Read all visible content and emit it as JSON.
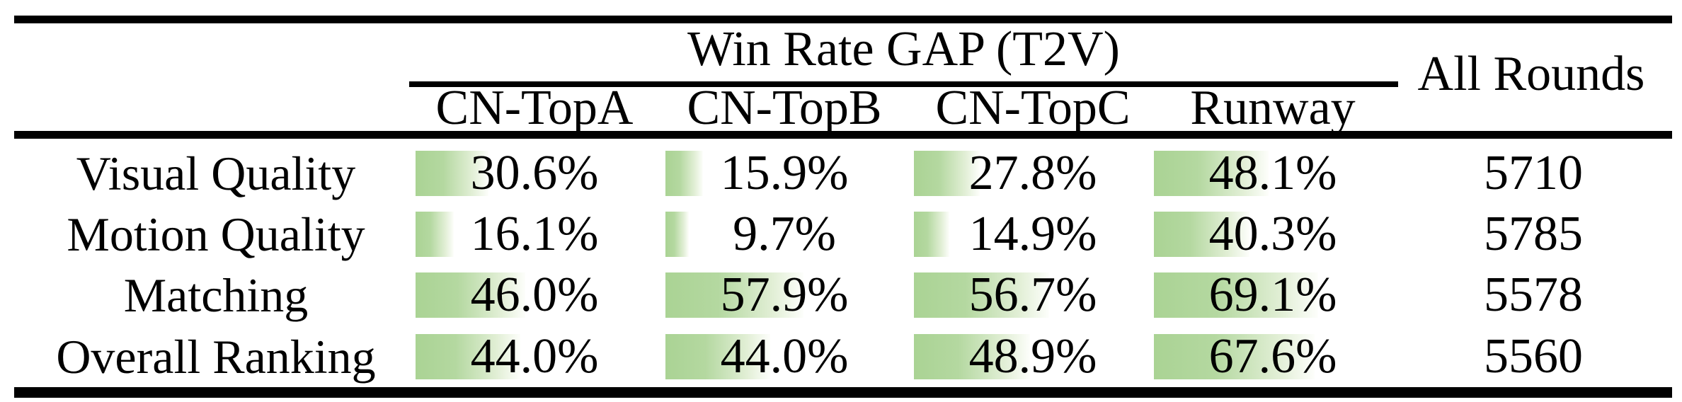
{
  "table": {
    "group_header": "Win Rate GAP (T2V)",
    "all_rounds_header": "All Rounds",
    "columns": [
      "CN-TopA",
      "CN-TopB",
      "CN-TopC",
      "Runway"
    ],
    "bar_color": "#aad394",
    "rows": [
      {
        "label": "Visual Quality",
        "all_rounds": "5710",
        "cells": [
          {
            "pct": 30.6,
            "text": "30.6%"
          },
          {
            "pct": 15.9,
            "text": "15.9%"
          },
          {
            "pct": 27.8,
            "text": "27.8%"
          },
          {
            "pct": 48.1,
            "text": "48.1%"
          }
        ]
      },
      {
        "label": "Motion Quality",
        "all_rounds": "5785",
        "cells": [
          {
            "pct": 16.1,
            "text": "16.1%"
          },
          {
            "pct": 9.7,
            "text": "9.7%"
          },
          {
            "pct": 14.9,
            "text": "14.9%"
          },
          {
            "pct": 40.3,
            "text": "40.3%"
          }
        ]
      },
      {
        "label": "Matching",
        "all_rounds": "5578",
        "cells": [
          {
            "pct": 46.0,
            "text": "46.0%"
          },
          {
            "pct": 57.9,
            "text": "57.9%"
          },
          {
            "pct": 56.7,
            "text": "56.7%"
          },
          {
            "pct": 69.1,
            "text": "69.1%"
          }
        ]
      },
      {
        "label": "Overall Ranking",
        "all_rounds": "5560",
        "cells": [
          {
            "pct": 44.0,
            "text": "44.0%"
          },
          {
            "pct": 44.0,
            "text": "44.0%"
          },
          {
            "pct": 48.9,
            "text": "48.9%"
          },
          {
            "pct": 67.6,
            "text": "67.6%"
          }
        ]
      }
    ]
  },
  "chart_data": {
    "type": "table",
    "title": "Win Rate GAP (T2V)",
    "categories": [
      "Visual Quality",
      "Motion Quality",
      "Matching",
      "Overall Ranking"
    ],
    "series": [
      {
        "name": "CN-TopA",
        "values": [
          30.6,
          16.1,
          46.0,
          44.0
        ],
        "unit": "%"
      },
      {
        "name": "CN-TopB",
        "values": [
          15.9,
          9.7,
          57.9,
          44.0
        ],
        "unit": "%"
      },
      {
        "name": "CN-TopC",
        "values": [
          27.8,
          14.9,
          56.7,
          48.9
        ],
        "unit": "%"
      },
      {
        "name": "Runway",
        "values": [
          48.1,
          40.3,
          69.1,
          67.6
        ],
        "unit": "%"
      },
      {
        "name": "All Rounds",
        "values": [
          5710,
          5785,
          5578,
          5560
        ],
        "unit": "rounds"
      }
    ],
    "bar_scale": {
      "min": 0,
      "max": 100
    },
    "layout": "in-cell horizontal gradient bars, green to white"
  }
}
